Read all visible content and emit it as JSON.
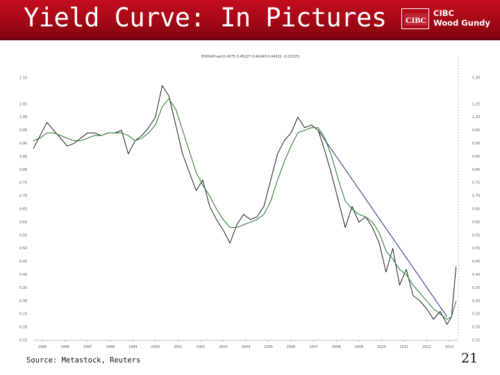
{
  "slide": {
    "title": "Yield Curve: In Pictures",
    "source": "Source: Metastock, Reuters",
    "page_number": "21"
  },
  "logo": {
    "mark": "CIBC",
    "line1": "CIBC",
    "line2": "Wood Gundy",
    "brand_color": "#b5091a"
  },
  "chart_data": {
    "type": "line",
    "title": "",
    "legend": "EH0O4Y-aar(0.4075 0.45227 0.44240 0.44232 -0.01325)",
    "xlabel": "",
    "ylabel": "",
    "ylim": [
      0.15,
      1.15
    ],
    "yticks": [
      1.15,
      1.05,
      1.0,
      0.95,
      0.9,
      0.85,
      0.8,
      0.75,
      0.7,
      0.65,
      0.6,
      0.55,
      0.5,
      0.45,
      0.4,
      0.35,
      0.3,
      0.25,
      0.2,
      0.15
    ],
    "ytick_labels_left": [
      "1.15",
      "1.05",
      "1.00",
      "0.95",
      "0.90",
      "0.85",
      "0.80",
      "0.75",
      "0.70",
      "0.65",
      "0.60",
      "0.55",
      "0.50",
      "0.45",
      "0.40",
      "0.35",
      "0.30",
      "0.25",
      "0.20",
      "0.15"
    ],
    "ytick_labels_right": [
      "1.30",
      "1.25",
      "1.20",
      "0.95",
      "0.90",
      "0.85",
      "0.80",
      "0.75",
      "0.70",
      "0.65",
      "0.60",
      "0.55",
      "0.50",
      "0.45",
      "0.40",
      "0.35",
      "0.30",
      "0.25",
      "0.20",
      "0.15"
    ],
    "xticks": [
      "1995",
      "1996",
      "1997",
      "1998",
      "1999",
      "2000",
      "2001",
      "2002",
      "2003",
      "2004",
      "2005",
      "2006",
      "2007",
      "2008",
      "2009",
      "2010",
      "2011",
      "2012",
      "2013"
    ],
    "grid": false,
    "x": [
      1994.6,
      1994.9,
      1995.2,
      1995.5,
      1995.8,
      1996.1,
      1996.4,
      1996.7,
      1997.0,
      1997.3,
      1997.6,
      1997.9,
      1998.2,
      1998.5,
      1998.8,
      1999.1,
      1999.4,
      1999.7,
      2000.0,
      2000.3,
      2000.6,
      2000.9,
      2001.2,
      2001.5,
      2001.8,
      2002.1,
      2002.4,
      2002.7,
      2003.0,
      2003.3,
      2003.6,
      2003.9,
      2004.2,
      2004.5,
      2004.8,
      2005.1,
      2005.4,
      2005.7,
      2006.0,
      2006.3,
      2006.6,
      2006.9,
      2007.2,
      2007.5,
      2007.8,
      2008.1,
      2008.4,
      2008.7,
      2009.0,
      2009.3,
      2009.6,
      2009.9,
      2010.2,
      2010.5,
      2010.8,
      2011.1,
      2011.4,
      2011.7,
      2012.0,
      2012.3,
      2012.6,
      2012.9,
      2013.1,
      2013.3
    ],
    "series": [
      {
        "color": "#000000",
        "values": [
          0.88,
          0.93,
          0.98,
          0.95,
          0.92,
          0.89,
          0.9,
          0.92,
          0.94,
          0.94,
          0.93,
          0.94,
          0.94,
          0.95,
          0.86,
          0.91,
          0.93,
          0.96,
          1.0,
          1.12,
          1.08,
          0.97,
          0.86,
          0.79,
          0.72,
          0.76,
          0.66,
          0.61,
          0.57,
          0.52,
          0.59,
          0.63,
          0.61,
          0.62,
          0.66,
          0.76,
          0.86,
          0.91,
          0.94,
          1.0,
          0.96,
          0.97,
          0.95,
          0.87,
          0.78,
          0.68,
          0.58,
          0.66,
          0.6,
          0.62,
          0.58,
          0.52,
          0.41,
          0.5,
          0.36,
          0.42,
          0.32,
          0.3,
          0.27,
          0.23,
          0.26,
          0.21,
          0.24,
          0.43
        ]
      },
      {
        "color": "#2e7d32",
        "values": [
          0.91,
          0.92,
          0.94,
          0.94,
          0.93,
          0.92,
          0.91,
          0.91,
          0.92,
          0.93,
          0.93,
          0.94,
          0.94,
          0.94,
          0.93,
          0.91,
          0.92,
          0.94,
          0.97,
          1.04,
          1.07,
          1.03,
          0.95,
          0.87,
          0.79,
          0.74,
          0.7,
          0.65,
          0.61,
          0.58,
          0.58,
          0.59,
          0.6,
          0.61,
          0.63,
          0.68,
          0.76,
          0.83,
          0.89,
          0.94,
          0.95,
          0.96,
          0.96,
          0.92,
          0.85,
          0.76,
          0.68,
          0.65,
          0.63,
          0.62,
          0.6,
          0.56,
          0.49,
          0.46,
          0.42,
          0.4,
          0.36,
          0.33,
          0.3,
          0.27,
          0.25,
          0.23,
          0.24,
          0.3
        ]
      },
      {
        "color": "#1a237e",
        "values": [
          null,
          null,
          null,
          null,
          null,
          null,
          null,
          null,
          null,
          null,
          null,
          null,
          null,
          null,
          null,
          null,
          null,
          null,
          null,
          null,
          null,
          null,
          null,
          null,
          null,
          null,
          null,
          null,
          null,
          null,
          null,
          null,
          null,
          null,
          null,
          null,
          null,
          null,
          null,
          null,
          null,
          null,
          0.95,
          null,
          null,
          null,
          null,
          null,
          null,
          null,
          null,
          null,
          null,
          null,
          null,
          null,
          null,
          null,
          null,
          null,
          null,
          0.24,
          null,
          null
        ]
      }
    ]
  }
}
